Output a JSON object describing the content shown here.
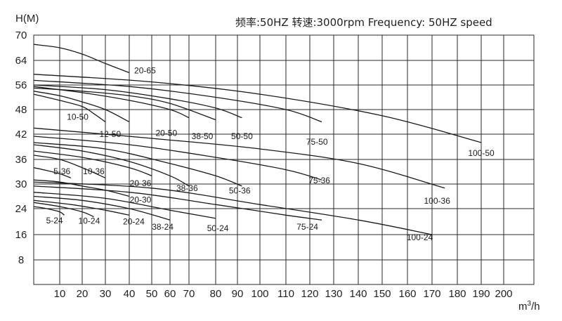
{
  "chart_data": {
    "type": "line",
    "title": "频率:50HZ 转速:3000rpm Frequency: 50HZ speed",
    "ylabel": "H(M)",
    "xlabel": "m³/h",
    "xlim": [
      0,
      200
    ],
    "ylim": [
      0,
      70
    ],
    "x_tick_labels": [
      "10",
      "20",
      "30",
      "40",
      "50",
      "60",
      "70",
      "80",
      "90",
      "100",
      "110",
      "120",
      "130",
      "140",
      "150",
      "160",
      "170",
      "180",
      "190",
      "200"
    ],
    "y_tick_labels": [
      "8",
      "16",
      "24",
      "30",
      "36",
      "42",
      "48",
      "56",
      "64",
      "70"
    ],
    "grid": true,
    "series": [
      {
        "name": "20-65",
        "points": [
          [
            0,
            67.8
          ],
          [
            10,
            67
          ],
          [
            20,
            65.5
          ],
          [
            30,
            63
          ],
          [
            40,
            60
          ]
        ]
      },
      {
        "name": "10-50",
        "points": [
          [
            0,
            53
          ],
          [
            10,
            51
          ],
          [
            20,
            49
          ],
          [
            25,
            47
          ],
          [
            30,
            45
          ]
        ]
      },
      {
        "name": "12-50",
        "points": [
          [
            0,
            54
          ],
          [
            10,
            52.5
          ],
          [
            20,
            50.5
          ],
          [
            30,
            48
          ],
          [
            40,
            45
          ]
        ]
      },
      {
        "name": "20-50",
        "points": [
          [
            0,
            55.5
          ],
          [
            20,
            53.5
          ],
          [
            40,
            51
          ],
          [
            60,
            48
          ],
          [
            70,
            46
          ]
        ]
      },
      {
        "name": "38-50",
        "points": [
          [
            0,
            55
          ],
          [
            20,
            54
          ],
          [
            40,
            52.5
          ],
          [
            60,
            50
          ],
          [
            80,
            45.5
          ]
        ]
      },
      {
        "name": "50-50",
        "points": [
          [
            0,
            56
          ],
          [
            30,
            54.5
          ],
          [
            60,
            51.5
          ],
          [
            80,
            48.5
          ],
          [
            92,
            46
          ]
        ]
      },
      {
        "name": "75-50",
        "points": [
          [
            0,
            57.5
          ],
          [
            40,
            55.5
          ],
          [
            80,
            52
          ],
          [
            110,
            48
          ],
          [
            125,
            45
          ]
        ]
      },
      {
        "name": "100-50",
        "points": [
          [
            0,
            59.5
          ],
          [
            50,
            57
          ],
          [
            100,
            53
          ],
          [
            150,
            46.5
          ],
          [
            190,
            40
          ]
        ]
      },
      {
        "name": "5-36",
        "points": [
          [
            0,
            34
          ],
          [
            5,
            33.3
          ],
          [
            10,
            32.5
          ],
          [
            15,
            31.5
          ]
        ]
      },
      {
        "name": "10-36",
        "points": [
          [
            0,
            37
          ],
          [
            10,
            36
          ],
          [
            20,
            34
          ],
          [
            30,
            31.5
          ]
        ]
      },
      {
        "name": "20-36",
        "points": [
          [
            0,
            38
          ],
          [
            20,
            36.5
          ],
          [
            40,
            34
          ],
          [
            50,
            32
          ]
        ]
      },
      {
        "name": "38-36",
        "points": [
          [
            0,
            39.5
          ],
          [
            20,
            38
          ],
          [
            40,
            35.5
          ],
          [
            60,
            32
          ],
          [
            70,
            29.5
          ]
        ]
      },
      {
        "name": "50-36",
        "points": [
          [
            0,
            40
          ],
          [
            30,
            38.5
          ],
          [
            60,
            35
          ],
          [
            80,
            32
          ],
          [
            92,
            29.5
          ]
        ]
      },
      {
        "name": "75-36",
        "points": [
          [
            0,
            41.5
          ],
          [
            40,
            39.5
          ],
          [
            80,
            36.5
          ],
          [
            110,
            33.5
          ],
          [
            125,
            31
          ]
        ]
      },
      {
        "name": "100-36",
        "points": [
          [
            0,
            43.5
          ],
          [
            50,
            41
          ],
          [
            100,
            38.5
          ],
          [
            140,
            35
          ],
          [
            175,
            29
          ]
        ]
      },
      {
        "name": "20-30",
        "points": [
          [
            0,
            31
          ],
          [
            10,
            30.5
          ],
          [
            20,
            29.5
          ],
          [
            30,
            28.5
          ],
          [
            40,
            27
          ]
        ]
      },
      {
        "name": "5-24",
        "points": [
          [
            0,
            24.5
          ],
          [
            5,
            24
          ],
          [
            10,
            23
          ],
          [
            12,
            22
          ]
        ]
      },
      {
        "name": "10-24",
        "points": [
          [
            0,
            25.5
          ],
          [
            10,
            24.5
          ],
          [
            20,
            23
          ],
          [
            25,
            21.5
          ]
        ]
      },
      {
        "name": "20-24",
        "points": [
          [
            0,
            26
          ],
          [
            15,
            25
          ],
          [
            30,
            23.5
          ],
          [
            40,
            22
          ]
        ]
      },
      {
        "name": "38-24",
        "points": [
          [
            0,
            27
          ],
          [
            20,
            26
          ],
          [
            40,
            24
          ],
          [
            60,
            20.5
          ]
        ]
      },
      {
        "name": "50-24",
        "points": [
          [
            0,
            28
          ],
          [
            30,
            26.5
          ],
          [
            60,
            23.5
          ],
          [
            80,
            21
          ]
        ]
      },
      {
        "name": "75-24",
        "points": [
          [
            0,
            29.5
          ],
          [
            40,
            28
          ],
          [
            80,
            25
          ],
          [
            110,
            22
          ],
          [
            125,
            20.5
          ]
        ]
      },
      {
        "name": "100-24",
        "points": [
          [
            0,
            30.5
          ],
          [
            50,
            29
          ],
          [
            100,
            25
          ],
          [
            140,
            20.5
          ],
          [
            170,
            16
          ]
        ]
      }
    ],
    "labels": [
      {
        "text": "20-65",
        "x": 47,
        "y": 59.8
      },
      {
        "text": "10-50",
        "x": 18,
        "y": 45.5
      },
      {
        "text": "12-50",
        "x": 32,
        "y": 41.3
      },
      {
        "text": "20-50",
        "x": 58,
        "y": 41.6
      },
      {
        "text": "38-50",
        "x": 75,
        "y": 40.8
      },
      {
        "text": "50-50",
        "x": 92,
        "y": 40.8
      },
      {
        "text": "75-50",
        "x": 123,
        "y": 39.5
      },
      {
        "text": "100-50",
        "x": 190,
        "y": 36.8
      },
      {
        "text": "5-36",
        "x": 11,
        "y": 32.4
      },
      {
        "text": "10-36",
        "x": 25,
        "y": 32.4
      },
      {
        "text": "20-36",
        "x": 45,
        "y": 29.5
      },
      {
        "text": "38-36",
        "x": 69,
        "y": 28.3
      },
      {
        "text": "50-36",
        "x": 91,
        "y": 27.7
      },
      {
        "text": "75-36",
        "x": 124,
        "y": 30.2
      },
      {
        "text": "100-36",
        "x": 172,
        "y": 25.2
      },
      {
        "text": "20-30",
        "x": 45,
        "y": 25.5
      },
      {
        "text": "5-24",
        "x": 8,
        "y": 19.5
      },
      {
        "text": "10-24",
        "x": 23,
        "y": 19.3
      },
      {
        "text": "20-24",
        "x": 42,
        "y": 19.1
      },
      {
        "text": "38-24",
        "x": 56,
        "y": 17.5
      },
      {
        "text": "50-24",
        "x": 81,
        "y": 17.1
      },
      {
        "text": "75-24",
        "x": 119,
        "y": 17.5
      },
      {
        "text": "100-24",
        "x": 165,
        "y": 14.2
      }
    ]
  }
}
